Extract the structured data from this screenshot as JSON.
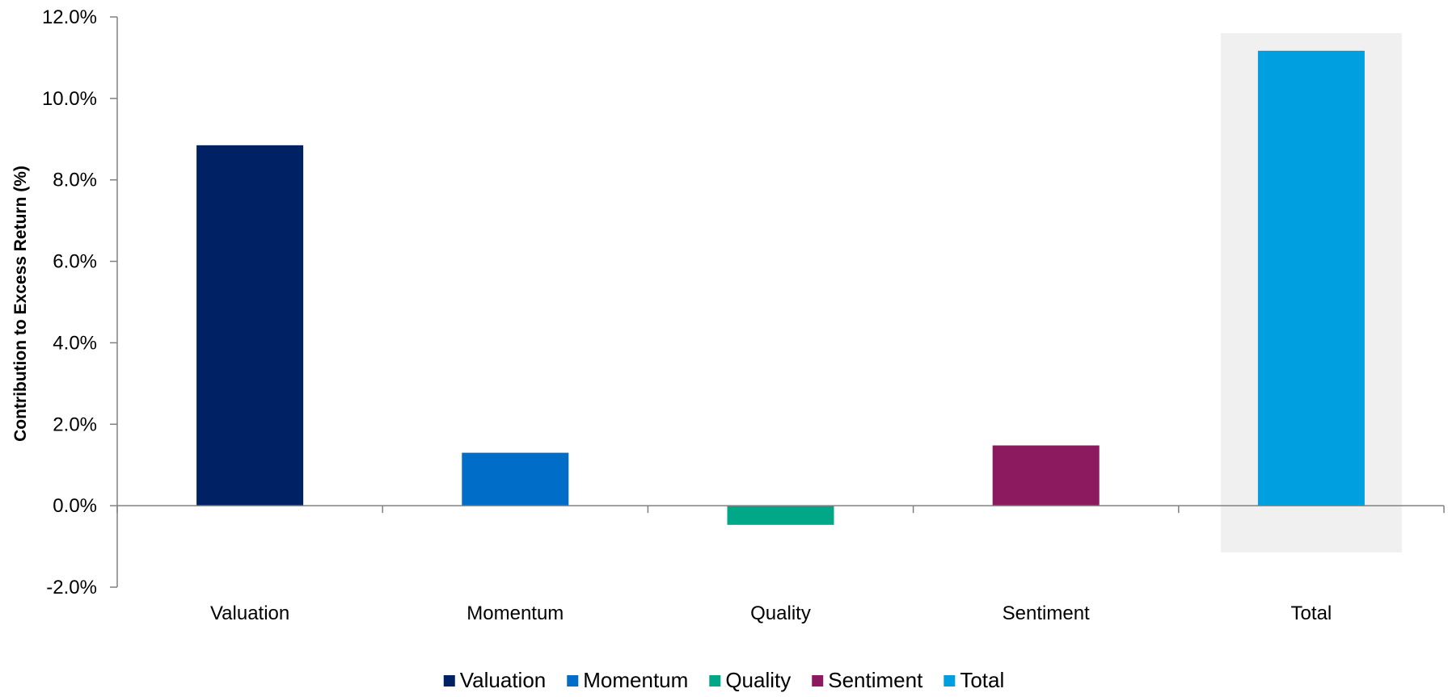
{
  "chart_data": {
    "type": "bar",
    "title": "",
    "xlabel": "",
    "ylabel": "Contribution to Excess Return (%)",
    "categories": [
      "Valuation",
      "Momentum",
      "Quality",
      "Sentiment",
      "Total"
    ],
    "values": [
      8.85,
      1.3,
      -0.47,
      1.48,
      11.17
    ],
    "colors": [
      "#002163",
      "#006DC9",
      "#00A887",
      "#8B1A5F",
      "#00A0E0"
    ],
    "ylim": [
      -2.0,
      12.0
    ],
    "yticks": [
      -2.0,
      0.0,
      2.0,
      4.0,
      6.0,
      8.0,
      10.0,
      12.0
    ],
    "ytick_labels": [
      "-2.0%",
      "0.0%",
      "2.0%",
      "4.0%",
      "6.0%",
      "8.0%",
      "10.0%",
      "12.0%"
    ],
    "highlight_category": "Total",
    "highlight_color": "#F0F0F0",
    "axis_color": "#808080",
    "grid": false,
    "legend_position": "bottom",
    "legend": [
      "Valuation",
      "Momentum",
      "Quality",
      "Sentiment",
      "Total"
    ]
  }
}
